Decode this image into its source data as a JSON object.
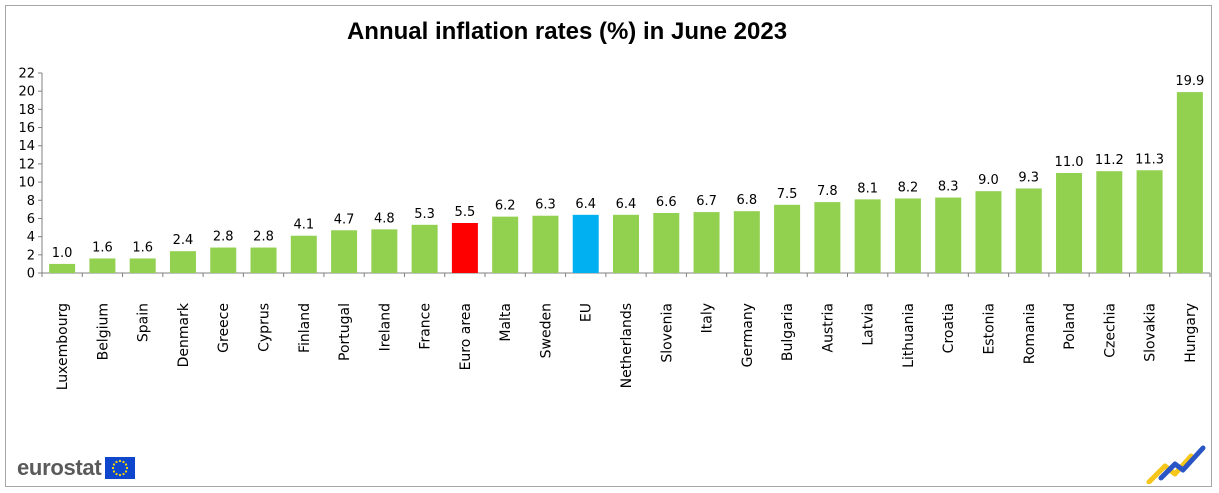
{
  "chart_data": {
    "type": "bar",
    "title": "Annual inflation rates (%) in June 2023",
    "xlabel": "",
    "ylabel": "",
    "ylim": [
      0,
      22
    ],
    "yticks": [
      0,
      2,
      4,
      6,
      8,
      10,
      12,
      14,
      16,
      18,
      20,
      22
    ],
    "grid": false,
    "categories": [
      "Luxembourg",
      "Belgium",
      "Spain",
      "Denmark",
      "Greece",
      "Cyprus",
      "Finland",
      "Portugal",
      "Ireland",
      "France",
      "Euro area",
      "Malta",
      "Sweden",
      "EU",
      "Netherlands",
      "Slovenia",
      "Italy",
      "Germany",
      "Bulgaria",
      "Austria",
      "Latvia",
      "Lithuania",
      "Croatia",
      "Estonia",
      "Romania",
      "Poland",
      "Czechia",
      "Slovakia",
      "Hungary"
    ],
    "values": [
      1.0,
      1.6,
      1.6,
      2.4,
      2.8,
      2.8,
      4.1,
      4.7,
      4.8,
      5.3,
      5.5,
      6.2,
      6.3,
      6.4,
      6.4,
      6.6,
      6.7,
      6.8,
      7.5,
      7.8,
      8.1,
      8.2,
      8.3,
      9.0,
      9.3,
      11.0,
      11.2,
      11.3,
      19.9
    ],
    "data_labels": [
      "1.0",
      "1.6",
      "1.6",
      "2.4",
      "2.8",
      "2.8",
      "4.1",
      "4.7",
      "4.8",
      "5.3",
      "5.5",
      "6.2",
      "6.3",
      "6.4",
      "6.4",
      "6.6",
      "6.7",
      "6.8",
      "7.5",
      "7.8",
      "8.1",
      "8.2",
      "8.3",
      "9.0",
      "9.3",
      "11.0",
      "11.2",
      "11.3",
      "19.9"
    ],
    "colors": {
      "default": "#92d050",
      "Euro area": "#ff0000",
      "EU": "#00b0f0"
    }
  },
  "branding": {
    "logo_text": "eurostat",
    "flag_color": "#0e47cb",
    "star_color": "#ffde00",
    "mark_blue": "#2a55c4",
    "mark_yellow": "#f6c61a"
  }
}
